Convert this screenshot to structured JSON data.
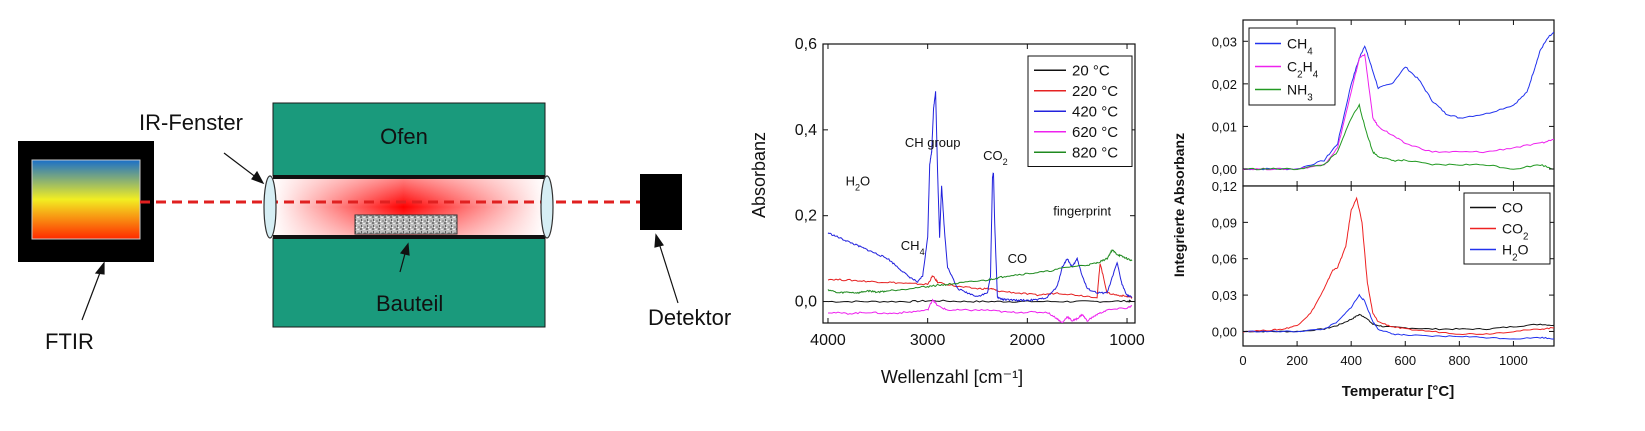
{
  "diagram": {
    "ftir_label": "FTIR",
    "window_label": "IR-Fenster",
    "oven_label": "Ofen",
    "part_label": "Bauteil",
    "detector_label": "Detektor",
    "colors": {
      "oven": "#1a9a7c",
      "beam": "#e02020",
      "gradient": [
        "#1a6fc9",
        "#f2ee22",
        "#ff2a00"
      ]
    }
  },
  "chart_data": [
    {
      "type": "line",
      "title": "",
      "xlabel": "Wellenzahl [cm⁻¹]",
      "ylabel": "Absorbanz",
      "xlim": [
        4050,
        920
      ],
      "ylim": [
        -0.05,
        0.6
      ],
      "xticks": [
        4000,
        3000,
        2000,
        1000
      ],
      "xtick_labels": [
        "4000",
        "3000",
        "2000",
        "1000"
      ],
      "yticks": [
        0.0,
        0.2,
        0.4,
        0.6
      ],
      "ytick_labels": [
        "0,0",
        "0,2",
        "0,4",
        "0,6"
      ],
      "legend_position": "top-right",
      "annotations": [
        {
          "text": "H₂O",
          "x": 3700,
          "y": 0.27
        },
        {
          "text": "CH group",
          "x": 2950,
          "y": 0.36
        },
        {
          "text": "CO₂",
          "x": 2320,
          "y": 0.33
        },
        {
          "text": "CH₄",
          "x": 3150,
          "y": 0.12
        },
        {
          "text": "CO",
          "x": 2100,
          "y": 0.09
        },
        {
          "text": "fingerprint",
          "x": 1450,
          "y": 0.2
        }
      ],
      "series": [
        {
          "name": "20 °C",
          "color": "#111111",
          "x": [
            4000,
            3600,
            3200,
            2950,
            2600,
            2300,
            2000,
            1600,
            1300,
            1000,
            950
          ],
          "y": [
            0.0,
            0.0,
            0.0,
            0.002,
            0.0,
            0.0,
            0.0,
            0.0,
            0.0,
            0.001,
            0.0
          ]
        },
        {
          "name": "220 °C",
          "color": "#e52222",
          "x": [
            4000,
            3800,
            3600,
            3400,
            3200,
            3000,
            2950,
            2900,
            2700,
            2500,
            2360,
            2300,
            2100,
            1900,
            1700,
            1500,
            1300,
            1270,
            1200,
            1100,
            1000,
            950
          ],
          "y": [
            0.052,
            0.05,
            0.047,
            0.045,
            0.042,
            0.04,
            0.06,
            0.045,
            0.035,
            0.03,
            0.03,
            0.025,
            0.02,
            0.015,
            0.02,
            0.015,
            0.01,
            0.09,
            0.02,
            0.015,
            0.012,
            0.01
          ]
        },
        {
          "name": "420 °C",
          "color": "#2222dd",
          "x": [
            4000,
            3900,
            3800,
            3700,
            3600,
            3500,
            3400,
            3300,
            3200,
            3100,
            3050,
            3000,
            2980,
            2960,
            2940,
            2920,
            2900,
            2880,
            2860,
            2830,
            2800,
            2700,
            2600,
            2500,
            2400,
            2370,
            2350,
            2340,
            2330,
            2300,
            2250,
            2200,
            2100,
            2000,
            1900,
            1800,
            1700,
            1650,
            1600,
            1550,
            1500,
            1450,
            1400,
            1300,
            1200,
            1100,
            1050,
            1000,
            950
          ],
          "y": [
            0.16,
            0.15,
            0.14,
            0.13,
            0.12,
            0.11,
            0.1,
            0.08,
            0.06,
            0.045,
            0.06,
            0.15,
            0.32,
            0.35,
            0.45,
            0.49,
            0.3,
            0.15,
            0.27,
            0.16,
            0.08,
            0.03,
            0.02,
            0.012,
            0.02,
            0.06,
            0.29,
            0.3,
            0.2,
            0.01,
            0.005,
            0.004,
            0.003,
            0.003,
            0.004,
            0.01,
            0.035,
            0.08,
            0.1,
            0.08,
            0.1,
            0.06,
            0.03,
            0.02,
            0.02,
            0.09,
            0.04,
            0.015,
            0.01
          ]
        },
        {
          "name": "620 °C",
          "color": "#ee22ee",
          "x": [
            4000,
            3800,
            3600,
            3400,
            3200,
            3000,
            2950,
            2900,
            2800,
            2600,
            2400,
            2200,
            2000,
            1800,
            1700,
            1650,
            1600,
            1550,
            1500,
            1450,
            1400,
            1300,
            1200,
            1000,
            950
          ],
          "y": [
            -0.025,
            -0.028,
            -0.025,
            -0.028,
            -0.025,
            -0.02,
            0.005,
            -0.01,
            -0.02,
            -0.02,
            -0.02,
            -0.025,
            -0.025,
            -0.025,
            -0.04,
            -0.05,
            -0.035,
            -0.045,
            -0.04,
            -0.03,
            -0.045,
            -0.03,
            -0.02,
            -0.015,
            -0.01
          ]
        },
        {
          "name": "820 °C",
          "color": "#1f8a1f",
          "x": [
            4000,
            3900,
            3800,
            3700,
            3600,
            3500,
            3400,
            3200,
            3000,
            2900,
            2800,
            2600,
            2400,
            2300,
            2200,
            2000,
            1800,
            1600,
            1400,
            1300,
            1200,
            1150,
            1100,
            1050,
            1000,
            950
          ],
          "y": [
            0.028,
            0.02,
            0.022,
            0.02,
            0.025,
            0.022,
            0.025,
            0.03,
            0.035,
            0.038,
            0.04,
            0.045,
            0.05,
            0.055,
            0.06,
            0.065,
            0.07,
            0.08,
            0.085,
            0.09,
            0.1,
            0.12,
            0.11,
            0.105,
            0.1,
            0.095
          ]
        }
      ]
    },
    {
      "type": "line",
      "title": "",
      "xlabel": "",
      "ylabel": "",
      "xlim": [
        0,
        1150
      ],
      "ylim": [
        -0.004,
        0.035
      ],
      "xticks": [
        0,
        200,
        400,
        600,
        800,
        1000
      ],
      "yticks": [
        0.0,
        0.01,
        0.02,
        0.03
      ],
      "ytick_labels": [
        "0,00",
        "0,01",
        "0,02",
        "0,03"
      ],
      "legend_position": "top-left",
      "series": [
        {
          "name": "CH₄",
          "color": "#2233ee",
          "x": [
            0,
            100,
            200,
            300,
            350,
            400,
            430,
            450,
            470,
            500,
            550,
            600,
            650,
            700,
            750,
            800,
            900,
            1000,
            1050,
            1080,
            1100,
            1130,
            1150
          ],
          "y": [
            0.0,
            0.0,
            0.0,
            0.002,
            0.006,
            0.02,
            0.026,
            0.029,
            0.025,
            0.019,
            0.02,
            0.024,
            0.021,
            0.016,
            0.013,
            0.012,
            0.013,
            0.015,
            0.018,
            0.024,
            0.028,
            0.031,
            0.032
          ]
        },
        {
          "name": "C₂H₄",
          "color": "#ee22ee",
          "x": [
            0,
            100,
            200,
            300,
            350,
            400,
            430,
            450,
            480,
            500,
            550,
            600,
            700,
            800,
            900,
            1000,
            1100,
            1150
          ],
          "y": [
            0.0,
            0.0,
            0.0,
            0.001,
            0.005,
            0.018,
            0.026,
            0.027,
            0.012,
            0.01,
            0.008,
            0.006,
            0.004,
            0.004,
            0.004,
            0.005,
            0.006,
            0.007
          ]
        },
        {
          "name": "NH₃",
          "color": "#229922",
          "x": [
            0,
            100,
            200,
            300,
            350,
            400,
            430,
            450,
            480,
            500,
            550,
            600,
            700,
            800,
            900,
            1000,
            1100,
            1150
          ],
          "y": [
            0.0,
            0.0,
            0.0,
            0.001,
            0.004,
            0.012,
            0.015,
            0.01,
            0.004,
            0.003,
            0.002,
            0.002,
            0.001,
            0.001,
            0.001,
            0.0,
            0.001,
            0.0
          ]
        }
      ]
    },
    {
      "type": "line",
      "title": "",
      "xlabel": "Temperatur [°C]",
      "ylabel": "Integrierte Absorbanz",
      "xlim": [
        0,
        1150
      ],
      "ylim": [
        -0.012,
        0.12
      ],
      "xticks": [
        0,
        200,
        400,
        600,
        800,
        1000
      ],
      "xtick_labels": [
        "0",
        "200",
        "400",
        "600",
        "800",
        "1000"
      ],
      "yticks": [
        0.0,
        0.03,
        0.06,
        0.09,
        0.12
      ],
      "ytick_labels": [
        "0,00",
        "0,03",
        "0,06",
        "0,09",
        "0,12"
      ],
      "legend_position": "top-right",
      "series": [
        {
          "name": "CO",
          "color": "#111111",
          "x": [
            0,
            100,
            200,
            300,
            350,
            400,
            430,
            450,
            480,
            520,
            600,
            700,
            800,
            900,
            1000,
            1100,
            1150
          ],
          "y": [
            0.0,
            0.0,
            0.0,
            0.002,
            0.005,
            0.01,
            0.014,
            0.012,
            0.006,
            0.004,
            0.003,
            0.002,
            0.002,
            0.002,
            0.004,
            0.006,
            0.005
          ]
        },
        {
          "name": "CO₂",
          "color": "#ee2222",
          "x": [
            0,
            100,
            150,
            200,
            250,
            300,
            330,
            350,
            380,
            400,
            420,
            440,
            460,
            480,
            500,
            550,
            600,
            700,
            800,
            900,
            1000,
            1100,
            1150
          ],
          "y": [
            0.0,
            0.001,
            0.002,
            0.005,
            0.015,
            0.035,
            0.05,
            0.053,
            0.07,
            0.1,
            0.11,
            0.09,
            0.04,
            0.015,
            0.008,
            0.004,
            0.002,
            0.0,
            -0.002,
            -0.002,
            0.0,
            0.002,
            0.003
          ]
        },
        {
          "name": "H₂O",
          "color": "#2233ee",
          "x": [
            0,
            100,
            200,
            300,
            350,
            400,
            430,
            450,
            480,
            500,
            550,
            600,
            700,
            800,
            900,
            1000,
            1100,
            1150
          ],
          "y": [
            0.0,
            0.0,
            0.0,
            0.002,
            0.008,
            0.02,
            0.03,
            0.025,
            0.008,
            0.002,
            -0.002,
            -0.003,
            -0.004,
            -0.004,
            -0.005,
            -0.006,
            -0.005,
            -0.006
          ]
        }
      ]
    }
  ]
}
